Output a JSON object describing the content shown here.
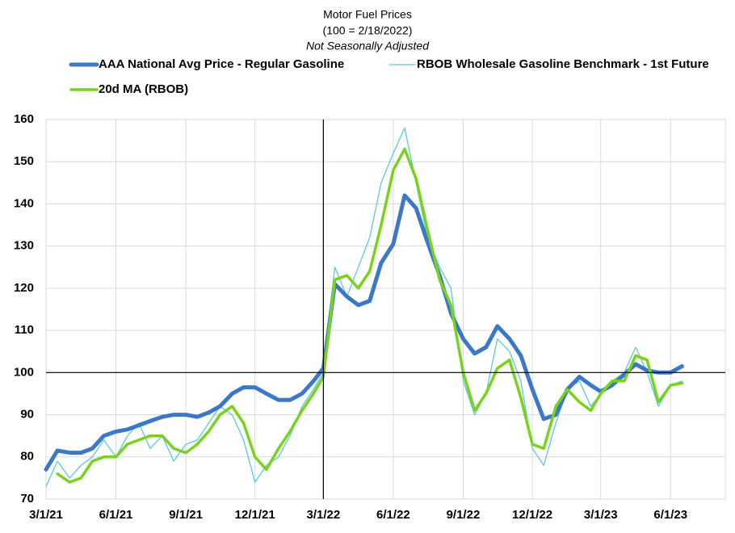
{
  "chart_data": {
    "type": "line",
    "title": "Motor Fuel Prices",
    "subtitle": "(100 = 2/18/2022)",
    "note": "Not Seasonally Adjusted",
    "x": [
      "3/1/21",
      "3/16/21",
      "4/1/21",
      "4/16/21",
      "5/1/21",
      "5/16/21",
      "6/1/21",
      "6/16/21",
      "7/1/21",
      "7/16/21",
      "8/1/21",
      "8/16/21",
      "9/1/21",
      "9/16/21",
      "10/1/21",
      "10/16/21",
      "11/1/21",
      "11/16/21",
      "12/1/21",
      "12/16/21",
      "1/1/22",
      "1/16/22",
      "2/1/22",
      "2/16/22",
      "3/1/22",
      "3/16/22",
      "4/1/22",
      "4/16/22",
      "5/1/22",
      "5/16/22",
      "6/1/22",
      "6/16/22",
      "7/1/22",
      "7/16/22",
      "8/1/22",
      "8/16/22",
      "9/1/22",
      "9/16/22",
      "10/1/22",
      "10/16/22",
      "11/1/22",
      "11/16/22",
      "12/1/22",
      "12/16/22",
      "1/1/23",
      "1/16/23",
      "2/1/23",
      "2/16/23",
      "3/1/23",
      "3/16/23",
      "4/1/23",
      "4/16/23",
      "5/1/23",
      "5/16/23",
      "6/1/23",
      "6/16/23"
    ],
    "series": [
      {
        "name": "AAA National Avg Price - Regular Gasoline",
        "color": "#3b78c8",
        "width": 5,
        "values": [
          77,
          81.5,
          81,
          81,
          82,
          85,
          86,
          86.5,
          87.5,
          88.5,
          89.5,
          90,
          90,
          89.5,
          90.5,
          92,
          95,
          96.5,
          96.5,
          95,
          93.5,
          93.5,
          95,
          98,
          101,
          121,
          118,
          116,
          117,
          126,
          130.5,
          142,
          139,
          131,
          123,
          114,
          108,
          104.5,
          106,
          111,
          108,
          104,
          96,
          89,
          90,
          96,
          99,
          97,
          95.5,
          97,
          99.5,
          102,
          100.5,
          100,
          100,
          101.5
        ]
      },
      {
        "name": "RBOB Wholesale Gasoline Benchmark - 1st Future",
        "color": "#5cc8dc",
        "width": 1.3,
        "values": [
          73,
          79,
          75,
          78,
          80,
          84,
          80,
          85,
          88,
          82,
          85,
          79,
          83,
          84,
          88,
          92,
          90,
          84,
          74,
          78,
          80,
          85,
          92,
          96,
          100,
          125,
          118,
          125,
          132,
          145,
          152,
          158,
          145,
          132,
          125,
          120,
          98,
          90,
          95,
          108,
          105,
          98,
          82,
          78,
          88,
          96,
          98,
          92,
          95,
          98,
          100,
          106,
          100,
          92,
          97,
          98
        ]
      },
      {
        "name": "20d MA (RBOB)",
        "color": "#78d21e",
        "width": 3.5,
        "values": [
          null,
          76,
          74,
          75,
          79,
          80,
          80,
          83,
          84,
          85,
          85,
          82,
          81,
          83,
          86,
          90,
          92,
          88,
          80,
          77,
          82,
          86,
          91,
          95,
          99,
          122,
          123,
          120,
          124,
          135,
          148,
          153,
          146,
          134,
          122,
          116,
          100,
          91,
          95,
          101,
          103,
          94,
          83,
          82,
          92,
          96,
          93,
          91,
          95,
          98,
          98,
          104,
          103,
          93,
          97,
          97.5
        ]
      }
    ],
    "xlim": [
      "3/1/21",
      "8/12/23"
    ],
    "xticks": [
      "3/1/21",
      "6/1/21",
      "9/1/21",
      "12/1/21",
      "3/1/22",
      "6/1/22",
      "9/1/22",
      "12/1/22",
      "3/1/23",
      "6/1/23"
    ],
    "ylim": [
      70,
      160
    ],
    "yticks": [
      70,
      80,
      90,
      100,
      110,
      120,
      130,
      140,
      150,
      160
    ],
    "grid": true,
    "hline": 100,
    "vline": "3/1/22",
    "legend": "top"
  }
}
